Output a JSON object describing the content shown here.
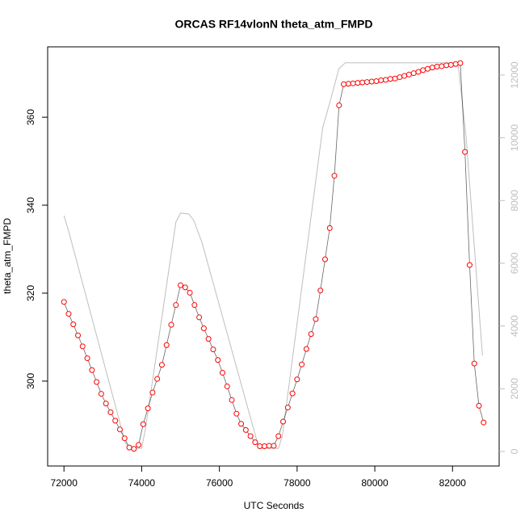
{
  "chart_data": {
    "type": "line",
    "title": "ORCAS RF14vlonN theta_atm_FMPD",
    "xlabel": "UTC Seconds",
    "ylabel": "theta_atm_FMPD",
    "xlim": [
      71580,
      83200
    ],
    "ylim": [
      280.7,
      376.0
    ],
    "y2lim": [
      -464,
      12900
    ],
    "xticks": [
      72000,
      74000,
      76000,
      78000,
      80000,
      82000
    ],
    "yticks": [
      300,
      320,
      340,
      360
    ],
    "y2ticks": [
      0,
      2000,
      4000,
      6000,
      8000,
      10000,
      12000
    ],
    "series": [
      {
        "color": "#ff0000",
        "marker": "circle",
        "x": [
          72000,
          72120,
          72240,
          72360,
          72480,
          72600,
          72720,
          72840,
          72960,
          73080,
          73200,
          73320,
          73440,
          73560,
          73680,
          73800,
          73920,
          74040,
          74160,
          74280,
          74400,
          74520,
          74640,
          74760,
          74880,
          75000,
          75120,
          75240,
          75360,
          75480,
          75600,
          75720,
          75840,
          75960,
          76080,
          76200,
          76320,
          76440,
          76560,
          76680,
          76800,
          76920,
          77040,
          77160,
          77280,
          77400,
          77520,
          77640,
          77760,
          77880,
          78000,
          78120,
          78240,
          78360,
          78480,
          78600,
          78720,
          78840,
          78960,
          79080,
          79200,
          79320,
          79440,
          79560,
          79680,
          79800,
          79920,
          80040,
          80160,
          80280,
          80400,
          80520,
          80640,
          80760,
          80880,
          81000,
          81120,
          81240,
          81360,
          81480,
          81600,
          81720,
          81840,
          81960,
          82080,
          82200,
          82320,
          82440,
          82560,
          82680,
          82800
        ],
        "values": [
          318,
          315.3,
          312.9,
          310.4,
          307.9,
          305.2,
          302.5,
          299.8,
          297.1,
          294.9,
          292.9,
          291.0,
          289.0,
          287.0,
          284.9,
          284.6,
          285.5,
          290.2,
          293.8,
          297.4,
          300.5,
          303.7,
          308.2,
          312.8,
          317.3,
          321.8,
          321.3,
          320.1,
          317.3,
          314.5,
          312.0,
          309.6,
          307.2,
          304.8,
          301.9,
          298.8,
          295.7,
          292.6,
          290.3,
          288.9,
          287.5,
          286.1,
          285.2,
          285.2,
          285.3,
          285.3,
          287.5,
          290.8,
          294.0,
          297.2,
          300.4,
          303.8,
          307.3,
          310.7,
          314.1,
          320.6,
          327.7,
          334.8,
          346.7,
          362.7,
          367.5,
          367.6,
          367.7,
          367.8,
          367.9,
          368.0,
          368.1,
          368.2,
          368.4,
          368.5,
          368.7,
          368.8,
          369.1,
          369.4,
          369.7,
          370.0,
          370.3,
          370.7,
          371.0,
          371.3,
          371.5,
          371.6,
          371.8,
          371.9,
          372.1,
          372.3,
          352.1,
          326.4,
          304.0,
          294.4,
          290.6
        ]
      },
      {
        "color": "#bebebe",
        "axis": "y2",
        "x": [
          72000,
          72124,
          73577,
          73680,
          74000,
          74100,
          74880,
          75000,
          75215,
          75340,
          75550,
          76960,
          77040,
          77520,
          77620,
          78660,
          78870,
          79075,
          79240,
          82000,
          82150,
          82350,
          82770
        ],
        "values": [
          7520,
          7005,
          283,
          100,
          100,
          750,
          7310,
          7600,
          7570,
          7365,
          6670,
          360,
          100,
          100,
          490,
          10330,
          11250,
          12200,
          12390,
          12390,
          12280,
          10020,
          3060
        ]
      }
    ]
  }
}
